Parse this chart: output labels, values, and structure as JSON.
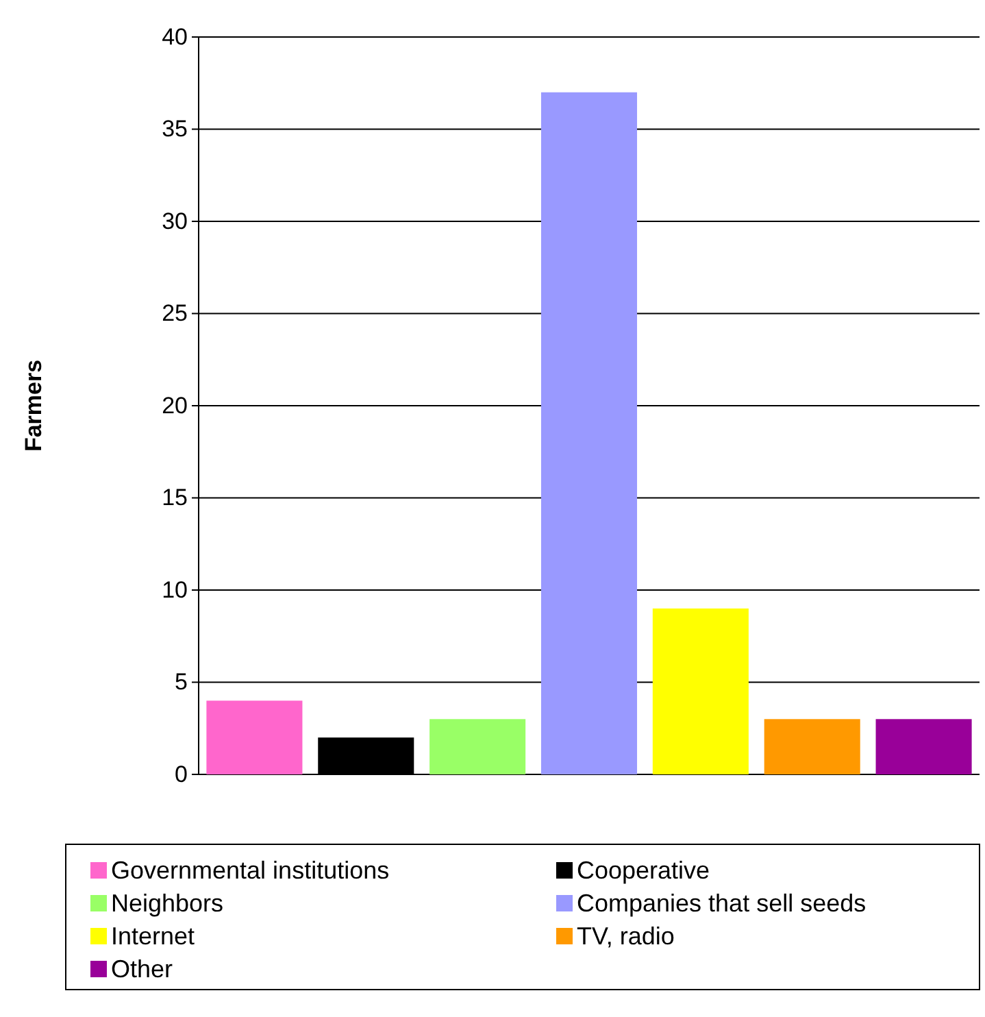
{
  "chart_data": {
    "type": "bar",
    "ylabel": "Farmers",
    "stacked": true,
    "categories": [
      null,
      null,
      null,
      null,
      null,
      null,
      null
    ],
    "series": [
      {
        "name": "Governmental institutions",
        "color": "#ff66cc",
        "values": [
          4,
          null,
          null,
          null,
          null,
          null,
          null
        ]
      },
      {
        "name": "Cooperative",
        "color": "#000000",
        "values": [
          null,
          2,
          null,
          null,
          null,
          null,
          null
        ]
      },
      {
        "name": "Neighbors",
        "color": "#99ff66",
        "values": [
          null,
          null,
          3,
          null,
          null,
          null,
          null
        ]
      },
      {
        "name": "Companies that sell seeds",
        "color": "#9999ff",
        "values": [
          null,
          null,
          null,
          37,
          null,
          null,
          null
        ]
      },
      {
        "name": "Internet",
        "color": "#ffff00",
        "values": [
          null,
          null,
          null,
          null,
          9,
          null,
          null
        ]
      },
      {
        "name": "TV, radio",
        "color": "#ff9900",
        "values": [
          null,
          null,
          null,
          null,
          null,
          3,
          null
        ]
      },
      {
        "name": "Other",
        "color": "#990099",
        "values": [
          null,
          null,
          null,
          null,
          null,
          null,
          3
        ]
      }
    ],
    "ylim": [
      0,
      40
    ],
    "yticks": [
      0,
      5,
      10,
      15,
      20,
      25,
      30,
      35,
      40
    ],
    "grid": "y",
    "legend": "bottom",
    "tick_labels": "y"
  }
}
